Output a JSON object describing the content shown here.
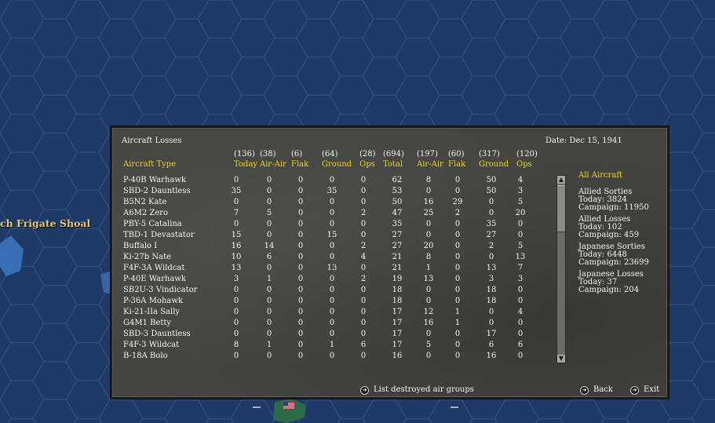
{
  "map": {
    "location_label": "ch Frigate Shoal"
  },
  "dialog": {
    "title": "Aircraft Losses",
    "date": "Date: Dec 15, 1941",
    "column_header": "Aircraft Type",
    "columns": [
      {
        "total": "(136)",
        "label": "Today"
      },
      {
        "total": "(38)",
        "label": "Air-Air"
      },
      {
        "total": "(6)",
        "label": "Flak"
      },
      {
        "total": "(64)",
        "label": "Ground"
      },
      {
        "total": "(28)",
        "label": "Ops"
      },
      {
        "total": "(694)",
        "label": "Total"
      },
      {
        "total": "(197)",
        "label": "Air-Air"
      },
      {
        "total": "(60)",
        "label": "Flak"
      },
      {
        "total": "(317)",
        "label": "Ground"
      },
      {
        "total": "(120)",
        "label": "Ops"
      }
    ],
    "rows": [
      {
        "type": "P-40B Warhawk",
        "v": [
          "0",
          "0",
          "0",
          "0",
          "0",
          "62",
          "8",
          "0",
          "50",
          "4"
        ]
      },
      {
        "type": "SBD-2 Dauntless",
        "v": [
          "35",
          "0",
          "0",
          "35",
          "0",
          "53",
          "0",
          "0",
          "50",
          "3"
        ]
      },
      {
        "type": "B5N2 Kate",
        "v": [
          "0",
          "0",
          "0",
          "0",
          "0",
          "50",
          "16",
          "29",
          "0",
          "5"
        ]
      },
      {
        "type": "A6M2 Zero",
        "v": [
          "7",
          "5",
          "0",
          "0",
          "2",
          "47",
          "25",
          "2",
          "0",
          "20"
        ]
      },
      {
        "type": "PBY-5 Catalina",
        "v": [
          "0",
          "0",
          "0",
          "0",
          "0",
          "35",
          "0",
          "0",
          "35",
          "0"
        ]
      },
      {
        "type": "TBD-1 Devastator",
        "v": [
          "15",
          "0",
          "0",
          "15",
          "0",
          "27",
          "0",
          "0",
          "27",
          "0"
        ]
      },
      {
        "type": "Buffalo I",
        "v": [
          "16",
          "14",
          "0",
          "0",
          "2",
          "27",
          "20",
          "0",
          "2",
          "5"
        ]
      },
      {
        "type": "Ki-27b Nate",
        "v": [
          "10",
          "6",
          "0",
          "0",
          "4",
          "21",
          "8",
          "0",
          "0",
          "13"
        ]
      },
      {
        "type": "F4F-3A Wildcat",
        "v": [
          "13",
          "0",
          "0",
          "13",
          "0",
          "21",
          "1",
          "0",
          "13",
          "7"
        ]
      },
      {
        "type": "P-40E Warhawk",
        "v": [
          "3",
          "1",
          "0",
          "0",
          "2",
          "19",
          "13",
          "0",
          "3",
          "3"
        ]
      },
      {
        "type": "SB2U-3 Vindicator",
        "v": [
          "0",
          "0",
          "0",
          "0",
          "0",
          "18",
          "0",
          "0",
          "18",
          "0"
        ]
      },
      {
        "type": "P-36A Mohawk",
        "v": [
          "0",
          "0",
          "0",
          "0",
          "0",
          "18",
          "0",
          "0",
          "18",
          "0"
        ]
      },
      {
        "type": "Ki-21-IIa Sally",
        "v": [
          "0",
          "0",
          "0",
          "0",
          "0",
          "17",
          "12",
          "1",
          "0",
          "4"
        ]
      },
      {
        "type": "G4M1 Betty",
        "v": [
          "0",
          "0",
          "0",
          "0",
          "0",
          "17",
          "16",
          "1",
          "0",
          "0"
        ]
      },
      {
        "type": "SBD-3 Dauntless",
        "v": [
          "0",
          "0",
          "0",
          "0",
          "0",
          "17",
          "0",
          "0",
          "17",
          "0"
        ]
      },
      {
        "type": "F4F-3 Wildcat",
        "v": [
          "8",
          "1",
          "0",
          "1",
          "6",
          "17",
          "5",
          "0",
          "6",
          "6"
        ]
      },
      {
        "type": "B-18A Bolo",
        "v": [
          "0",
          "0",
          "0",
          "0",
          "0",
          "16",
          "0",
          "0",
          "16",
          "0"
        ]
      }
    ],
    "summary": {
      "filter": "All Aircraft",
      "allied_sorties": {
        "title": "Allied Sorties",
        "today": "Today:   3824",
        "campaign": "Campaign: 11950"
      },
      "allied_losses": {
        "title": "Allied Losses",
        "today": "Today:   102",
        "campaign": "Campaign: 459"
      },
      "japanese_sorties": {
        "title": "Japanese Sorties",
        "today": "Today:   6448",
        "campaign": "Campaign: 23699"
      },
      "japanese_losses": {
        "title": "Japanese Losses",
        "today": "Today:   37",
        "campaign": "Campaign: 204"
      }
    },
    "buttons": {
      "list_destroyed": "List destroyed air groups",
      "back": "Back",
      "exit": "Exit"
    }
  },
  "colors": {
    "header_yellow": "#f0d900",
    "panel_bg": "#444441",
    "map_sea": "#1f3a66"
  }
}
